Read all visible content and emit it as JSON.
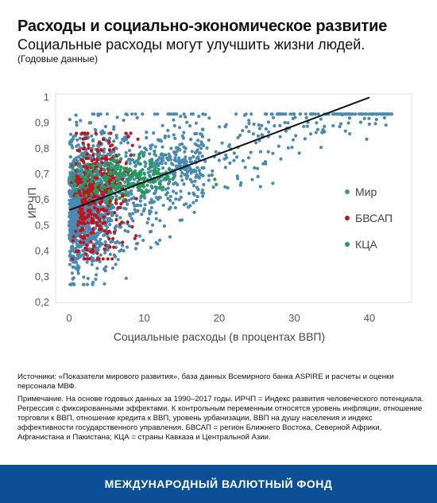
{
  "header": {
    "title": "Расходы и социально-экономическое развитие",
    "subtitle": "Социальные расходы могут улучшить жизни людей.",
    "period": "(Годовые данные)"
  },
  "chart_data": {
    "type": "scatter",
    "title": "",
    "xlabel": "Социальные расходы (в процентах ВВП)",
    "ylabel": "ИРЧП",
    "xlim": [
      -2,
      45
    ],
    "ylim": [
      0.2,
      1.0
    ],
    "xticks": [
      "0",
      "10",
      "20",
      "30",
      "40"
    ],
    "yticks": [
      "0,2",
      "0,3",
      "0,4",
      "0,5",
      "0,6",
      "0,7",
      "0,8",
      "0,9",
      "1"
    ],
    "grid": false,
    "legend_position": "right",
    "series": [
      {
        "name": "Мир",
        "color": "#4a8ab0"
      },
      {
        "name": "БВСАП",
        "color": "#c0141c"
      },
      {
        "name": "КЦА",
        "color": "#1f9e54"
      }
    ],
    "fit_line": {
      "x": [
        0,
        40
      ],
      "y": [
        0.56,
        1.0
      ],
      "color": "#111111"
    }
  },
  "notes": {
    "sources": "Источники: «Показатели мирового развития», база данных Всемирного банка ASPIRE и расчеты и оценки персонала МВФ.",
    "note": "Примечание. На основе годовых данных за 1990–2017 годы. ИРЧП = Индекс развития человеческого потенциала. Регрессия с фиксированными эффектами. К контрольным переменным относятся уровень инфляции, отношение торговли к ВВП, отношение кредита к ВВП, уровень урбанизации, ВВП на душу населения и индекс эффективности государственного управления. БВСАП = регион Ближнего Востока, Северной Африки, Афганистана и Пакистана; КЦА = страны Кавказа и Центральной Азии."
  },
  "footer": {
    "label": "МЕЖДУНАРОДНЫЙ ВАЛЮТНЫЙ ФОНД"
  }
}
